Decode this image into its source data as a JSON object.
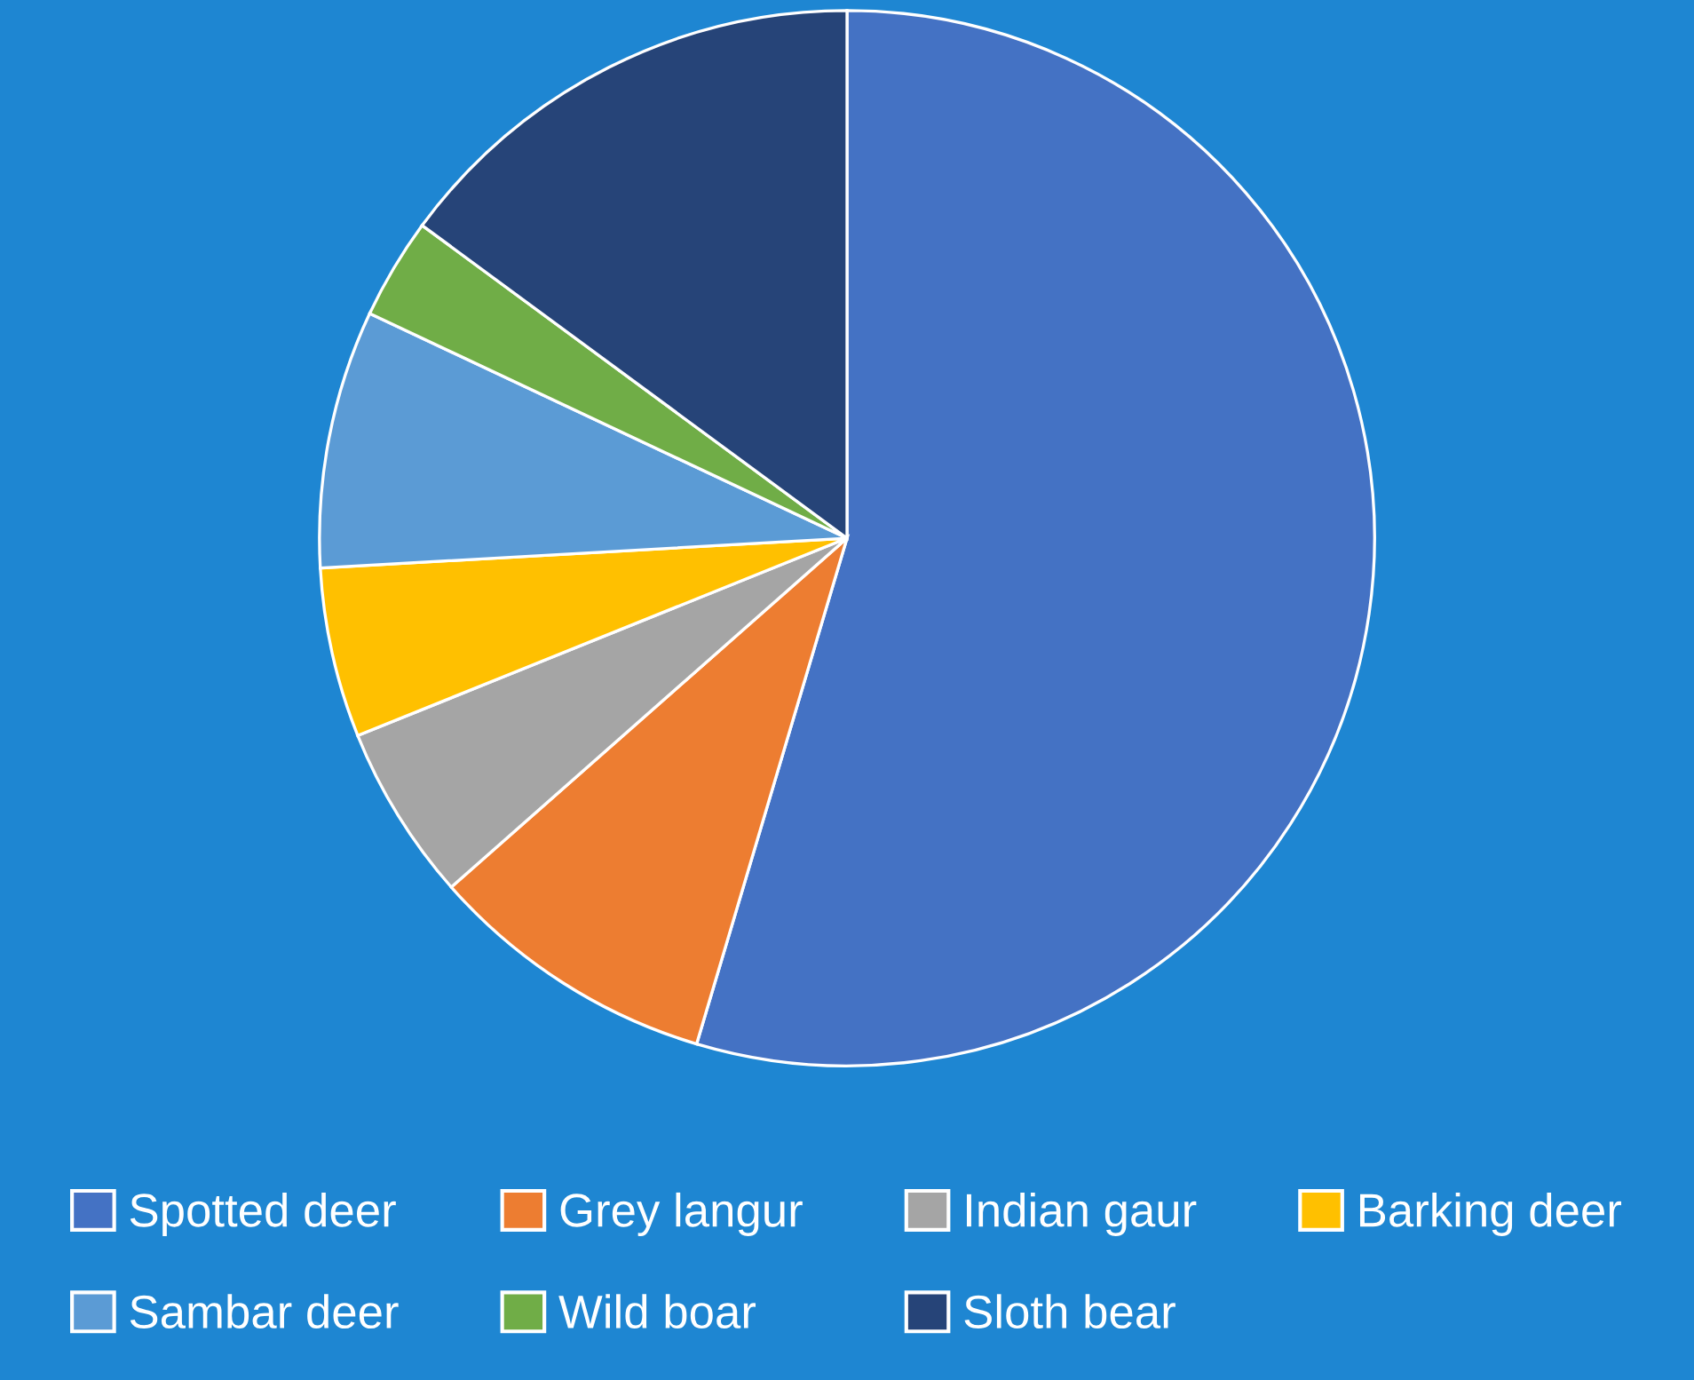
{
  "chart_data": {
    "type": "pie",
    "categories": [
      "Spotted deer",
      "Grey langur",
      "Indian gaur",
      "Barking deer",
      "Sambar deer",
      "Wild boar",
      "Sloth bear"
    ],
    "values": [
      54.6,
      8.9,
      5.4,
      5.2,
      7.9,
      3.1,
      14.9
    ],
    "colors": [
      "#4472c4",
      "#ed7d31",
      "#a5a5a5",
      "#ffc000",
      "#5b9bd5",
      "#70ad47",
      "#264478"
    ],
    "legend": "bottom"
  }
}
